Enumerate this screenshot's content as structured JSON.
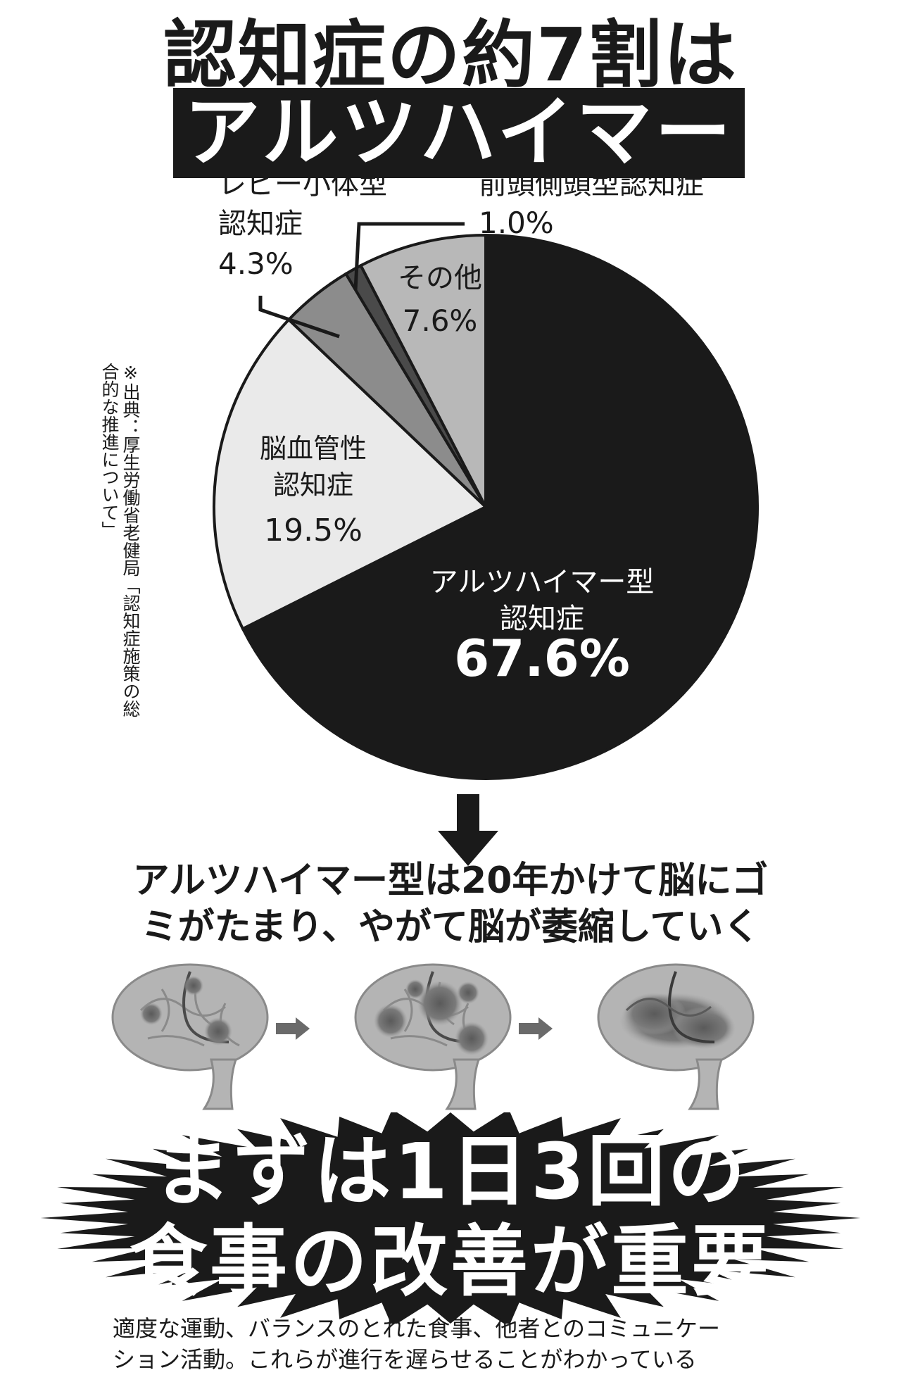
{
  "header": {
    "title_line1": "認知症の約7割は",
    "title_line2": "アルツハイマー型"
  },
  "chart_data": {
    "type": "pie",
    "slices": [
      {
        "label_lines": [
          "アルツハイマー型",
          "認知症"
        ],
        "value": 67.6,
        "value_text": "67.6%",
        "color": "#1a1a1a",
        "text_color": "#ffffff"
      },
      {
        "label_lines": [
          "脳血管性",
          "認知症"
        ],
        "value": 19.5,
        "value_text": "19.5%",
        "color": "#eaeaea",
        "text_color": "#1a1a1a"
      },
      {
        "label_lines": [
          "レビー小体型",
          "認知症"
        ],
        "value": 4.3,
        "value_text": "4.3%",
        "color": "#8c8c8c",
        "text_color": "#1a1a1a"
      },
      {
        "label_lines": [
          "前頭側頭型認知症"
        ],
        "value": 1.0,
        "value_text": "1.0%",
        "color": "#4a4a4a",
        "text_color": "#1a1a1a"
      },
      {
        "label_lines": [
          "その他"
        ],
        "value": 7.6,
        "value_text": "7.6%",
        "color": "#b8b8b8",
        "text_color": "#1a1a1a"
      }
    ]
  },
  "source_note": "※出典：厚生労働省老健局「認知症施策の総合的な推進について」",
  "caption": {
    "line1": "アルツハイマー型は20年かけて脳にゴ",
    "line2": "ミがたまり、やがて脳が萎縮していく"
  },
  "headline": {
    "line1": "まずは1日3回の",
    "line2": "食事の改善が重要"
  },
  "footer": {
    "line1": "適度な運動、バランスのとれた食事、他者とのコミュニケー",
    "line2": "ション活動。これらが進行を遅らせることがわかっている"
  },
  "icons": [
    "down-arrow-icon",
    "brain-stage-1-icon",
    "brain-stage-2-icon",
    "brain-stage-3-icon",
    "right-arrow-icon"
  ]
}
